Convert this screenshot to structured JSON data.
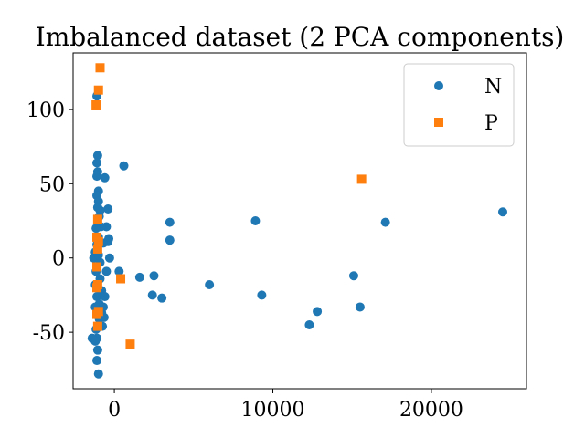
{
  "chart_data": {
    "type": "scatter",
    "title": "Imbalanced dataset (2 PCA components)",
    "xlabel": "",
    "ylabel": "",
    "xlim": [
      -2600,
      26000
    ],
    "ylim": [
      -88,
      138
    ],
    "x_ticks": [
      0,
      10000,
      20000
    ],
    "x_tick_labels": [
      "0",
      "10000",
      "20000"
    ],
    "y_ticks": [
      -50,
      0,
      50,
      100
    ],
    "y_tick_labels": [
      "-50",
      "0",
      "50",
      "100"
    ],
    "grid": false,
    "legend_position": "top-right",
    "series": [
      {
        "name": "N",
        "marker": "circle",
        "color": "#1f77b4",
        "points": [
          [
            24500,
            31
          ],
          [
            17100,
            24
          ],
          [
            15500,
            -33
          ],
          [
            15100,
            -12
          ],
          [
            12800,
            -36
          ],
          [
            12300,
            -45
          ],
          [
            9300,
            -25
          ],
          [
            8900,
            25
          ],
          [
            6000,
            -18
          ],
          [
            3500,
            24
          ],
          [
            3500,
            12
          ],
          [
            3000,
            -27
          ],
          [
            2500,
            -12
          ],
          [
            2400,
            -25
          ],
          [
            1600,
            -13
          ],
          [
            600,
            62
          ],
          [
            300,
            -9
          ],
          [
            -400,
            33
          ],
          [
            -350,
            13
          ],
          [
            -300,
            0
          ],
          [
            -500,
            21
          ],
          [
            -600,
            54
          ],
          [
            -1100,
            109
          ],
          [
            -1050,
            69
          ],
          [
            -1100,
            64
          ],
          [
            -1050,
            58
          ],
          [
            -1100,
            55
          ],
          [
            -1000,
            45
          ],
          [
            -1100,
            42
          ],
          [
            -1000,
            38
          ],
          [
            -900,
            32
          ],
          [
            -950,
            28
          ],
          [
            -850,
            21
          ],
          [
            -1150,
            20
          ],
          [
            -1000,
            14
          ],
          [
            -1100,
            9
          ],
          [
            -1200,
            4
          ],
          [
            -1300,
            0
          ],
          [
            -900,
            -3
          ],
          [
            -1150,
            -9
          ],
          [
            -900,
            -14
          ],
          [
            -1200,
            -18
          ],
          [
            -800,
            -22
          ],
          [
            -1100,
            -26
          ],
          [
            -950,
            -31
          ],
          [
            -1200,
            -33
          ],
          [
            -800,
            -37
          ],
          [
            -950,
            -41
          ],
          [
            -750,
            -46
          ],
          [
            -1150,
            -48
          ],
          [
            -1100,
            -54
          ],
          [
            -1400,
            -54
          ],
          [
            -1200,
            -56
          ],
          [
            -1050,
            -62
          ],
          [
            -1100,
            -69
          ],
          [
            -1000,
            -78
          ],
          [
            -400,
            11
          ],
          [
            -500,
            -9
          ],
          [
            -600,
            -26
          ],
          [
            -650,
            -40
          ],
          [
            -700,
            -33
          ],
          [
            -700,
            10
          ],
          [
            -1050,
            34
          ],
          [
            -1000,
            2
          ]
        ]
      },
      {
        "name": "P",
        "marker": "square",
        "color": "#ff7f0e",
        "points": [
          [
            -900,
            128
          ],
          [
            -1000,
            113
          ],
          [
            -1150,
            103
          ],
          [
            15600,
            53
          ],
          [
            400,
            -14
          ],
          [
            1000,
            -58
          ],
          [
            -1050,
            26
          ],
          [
            -1100,
            14
          ],
          [
            -1000,
            11
          ],
          [
            -1050,
            6
          ],
          [
            -1100,
            -6
          ],
          [
            -1050,
            -18
          ],
          [
            -1100,
            -20
          ],
          [
            -1000,
            -36
          ],
          [
            -1100,
            -38
          ],
          [
            -1050,
            -46
          ]
        ]
      }
    ]
  }
}
